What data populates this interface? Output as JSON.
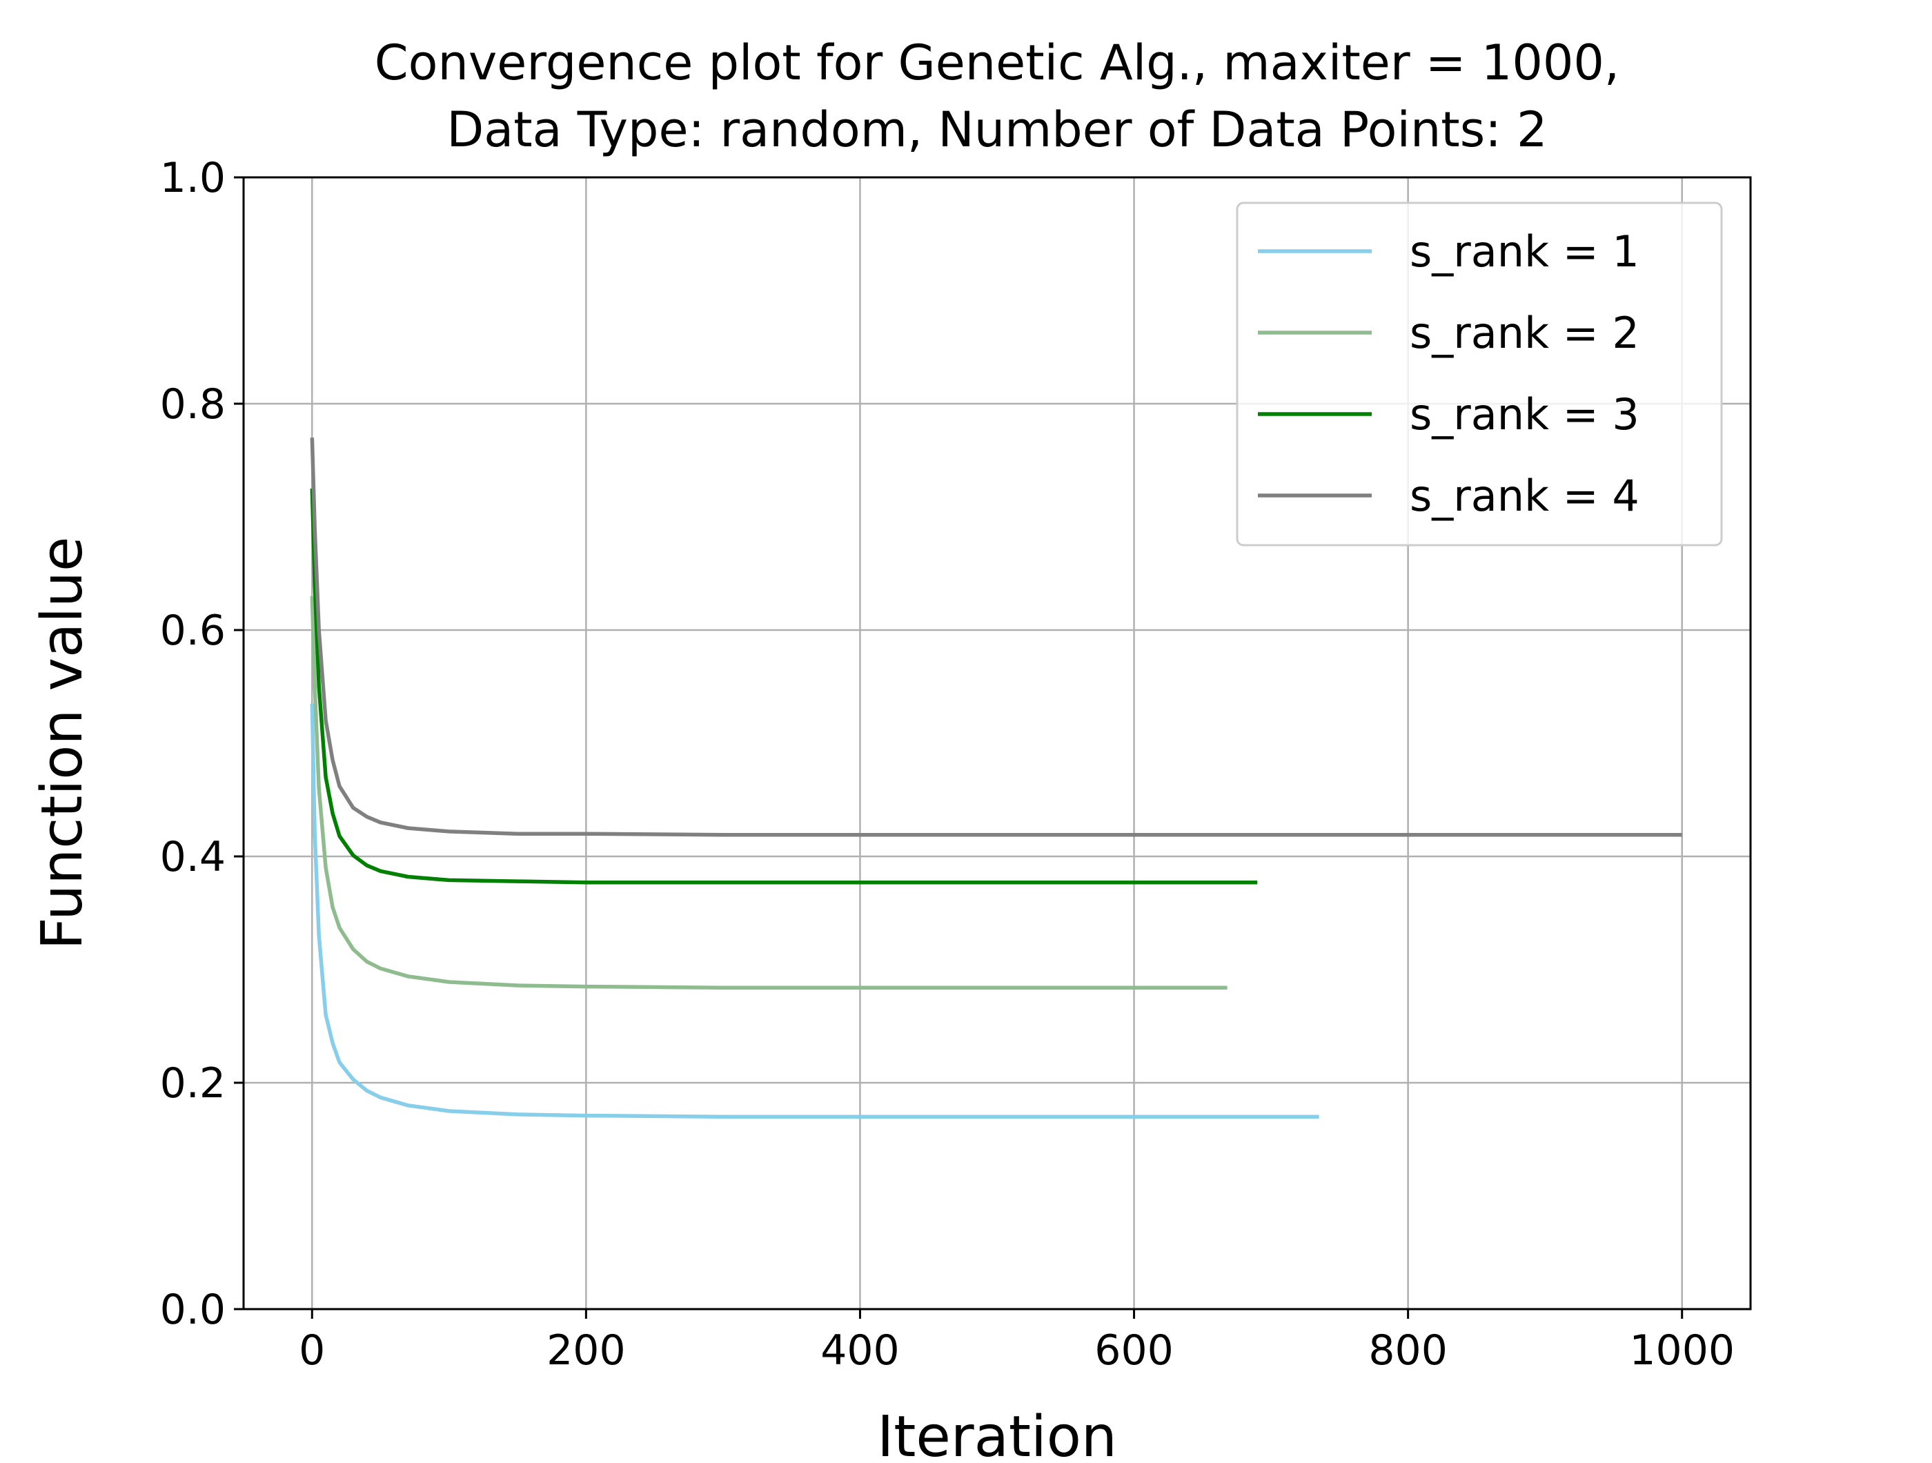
{
  "chart_data": {
    "type": "line",
    "title": "Convergence plot for Genetic Alg., maxiter = 1000,\nData Type: random, Number of Data Points: 2",
    "title_lines": [
      "Convergence plot for Genetic Alg., maxiter = 1000,",
      "Data Type: random, Number of Data Points: 2"
    ],
    "xlabel": "Iteration",
    "ylabel": "Function value",
    "xlim": [
      -50,
      1050
    ],
    "ylim": [
      0.0,
      1.0
    ],
    "xticks": [
      0,
      200,
      400,
      600,
      800,
      1000
    ],
    "xtick_labels": [
      "0",
      "200",
      "400",
      "600",
      "800",
      "1000"
    ],
    "yticks": [
      0.0,
      0.2,
      0.4,
      0.6,
      0.8,
      1.0
    ],
    "ytick_labels": [
      "0.0",
      "0.2",
      "0.4",
      "0.6",
      "0.8",
      "1.0"
    ],
    "grid": true,
    "legend_position": "top-right",
    "series": [
      {
        "name": "s_rank = 1",
        "color": "#87CEEB",
        "x": [
          0,
          2,
          5,
          10,
          15,
          20,
          30,
          40,
          50,
          70,
          100,
          150,
          200,
          300,
          400,
          500,
          600,
          735
        ],
        "y": [
          0.535,
          0.42,
          0.33,
          0.26,
          0.235,
          0.218,
          0.203,
          0.193,
          0.187,
          0.18,
          0.175,
          0.172,
          0.171,
          0.17,
          0.17,
          0.17,
          0.17,
          0.17
        ]
      },
      {
        "name": "s_rank = 2",
        "color": "#8FBC8F",
        "x": [
          0,
          2,
          5,
          10,
          15,
          20,
          30,
          40,
          50,
          70,
          100,
          150,
          200,
          300,
          400,
          500,
          600,
          668
        ],
        "y": [
          0.63,
          0.55,
          0.46,
          0.39,
          0.355,
          0.337,
          0.318,
          0.307,
          0.301,
          0.294,
          0.289,
          0.286,
          0.285,
          0.284,
          0.284,
          0.284,
          0.284,
          0.284
        ]
      },
      {
        "name": "s_rank = 3",
        "color": "#008000",
        "x": [
          0,
          2,
          5,
          10,
          15,
          20,
          30,
          40,
          50,
          70,
          100,
          150,
          200,
          300,
          400,
          500,
          600,
          690
        ],
        "y": [
          0.725,
          0.64,
          0.55,
          0.47,
          0.438,
          0.418,
          0.401,
          0.392,
          0.387,
          0.382,
          0.379,
          0.378,
          0.377,
          0.377,
          0.377,
          0.377,
          0.377,
          0.377
        ]
      },
      {
        "name": "s_rank = 4",
        "color": "#808080",
        "x": [
          0,
          2,
          5,
          10,
          15,
          20,
          30,
          40,
          50,
          70,
          100,
          150,
          200,
          300,
          400,
          500,
          600,
          700,
          800,
          900,
          1000
        ],
        "y": [
          0.77,
          0.69,
          0.6,
          0.52,
          0.485,
          0.462,
          0.443,
          0.435,
          0.43,
          0.425,
          0.422,
          0.42,
          0.42,
          0.419,
          0.419,
          0.419,
          0.419,
          0.419,
          0.419,
          0.419,
          0.419
        ]
      }
    ]
  }
}
